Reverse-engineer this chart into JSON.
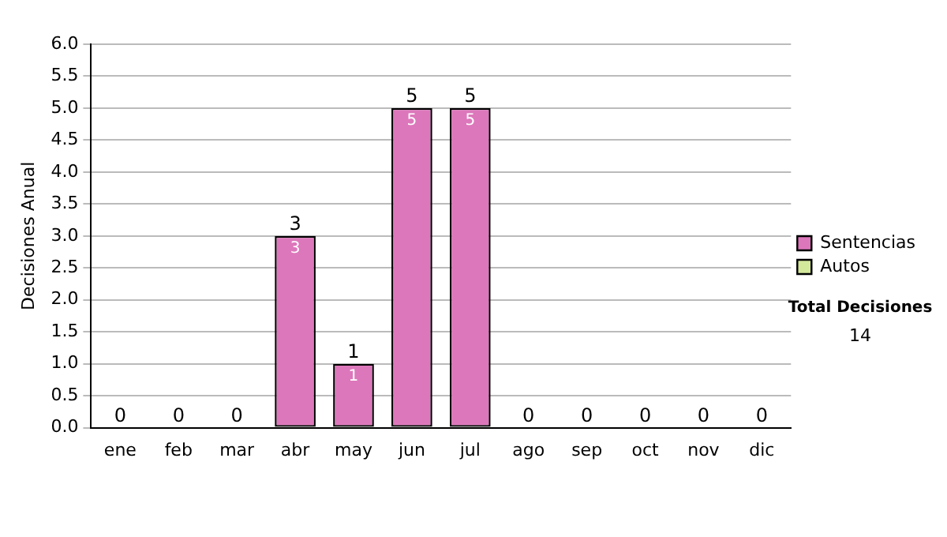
{
  "chart_data": {
    "type": "bar",
    "ylabel": "Decisiones Anual",
    "categories": [
      "ene",
      "feb",
      "mar",
      "abr",
      "may",
      "jun",
      "jul",
      "ago",
      "sep",
      "oct",
      "nov",
      "dic"
    ],
    "series": [
      {
        "name": "Sentencias",
        "color": "#dd77bb",
        "values": [
          0,
          0,
          0,
          3,
          1,
          5,
          5,
          0,
          0,
          0,
          0,
          0
        ],
        "value_labels": [
          null,
          null,
          null,
          "3",
          "1",
          "5",
          "5",
          null,
          null,
          null,
          null,
          null
        ]
      },
      {
        "name": "Autos",
        "color": "#d4e89c",
        "values": [
          0,
          0,
          0,
          0,
          0,
          0,
          0,
          0,
          0,
          0,
          0,
          0
        ]
      }
    ],
    "stacked": true,
    "totals": [
      "0",
      "0",
      "0",
      "3",
      "1",
      "5",
      "5",
      "0",
      "0",
      "0",
      "0",
      "0"
    ],
    "ylim": [
      0,
      6
    ],
    "yticks": [
      {
        "value": 0,
        "label": "0.0"
      },
      {
        "value": 0.5,
        "label": "0.5"
      },
      {
        "value": 1,
        "label": "1.0"
      },
      {
        "value": 1.5,
        "label": "1.5"
      },
      {
        "value": 2,
        "label": "2.0"
      },
      {
        "value": 2.5,
        "label": "2.5"
      },
      {
        "value": 3,
        "label": "3.0"
      },
      {
        "value": 3.5,
        "label": "3.5"
      },
      {
        "value": 4,
        "label": "4.0"
      },
      {
        "value": 4.5,
        "label": "4.5"
      },
      {
        "value": 5,
        "label": "5.0"
      },
      {
        "value": 5.5,
        "label": "5.5"
      },
      {
        "value": 6,
        "label": "6.0"
      }
    ],
    "grid": "y",
    "legend": "right",
    "annotations": [
      "Total Decisiones",
      "14"
    ]
  }
}
